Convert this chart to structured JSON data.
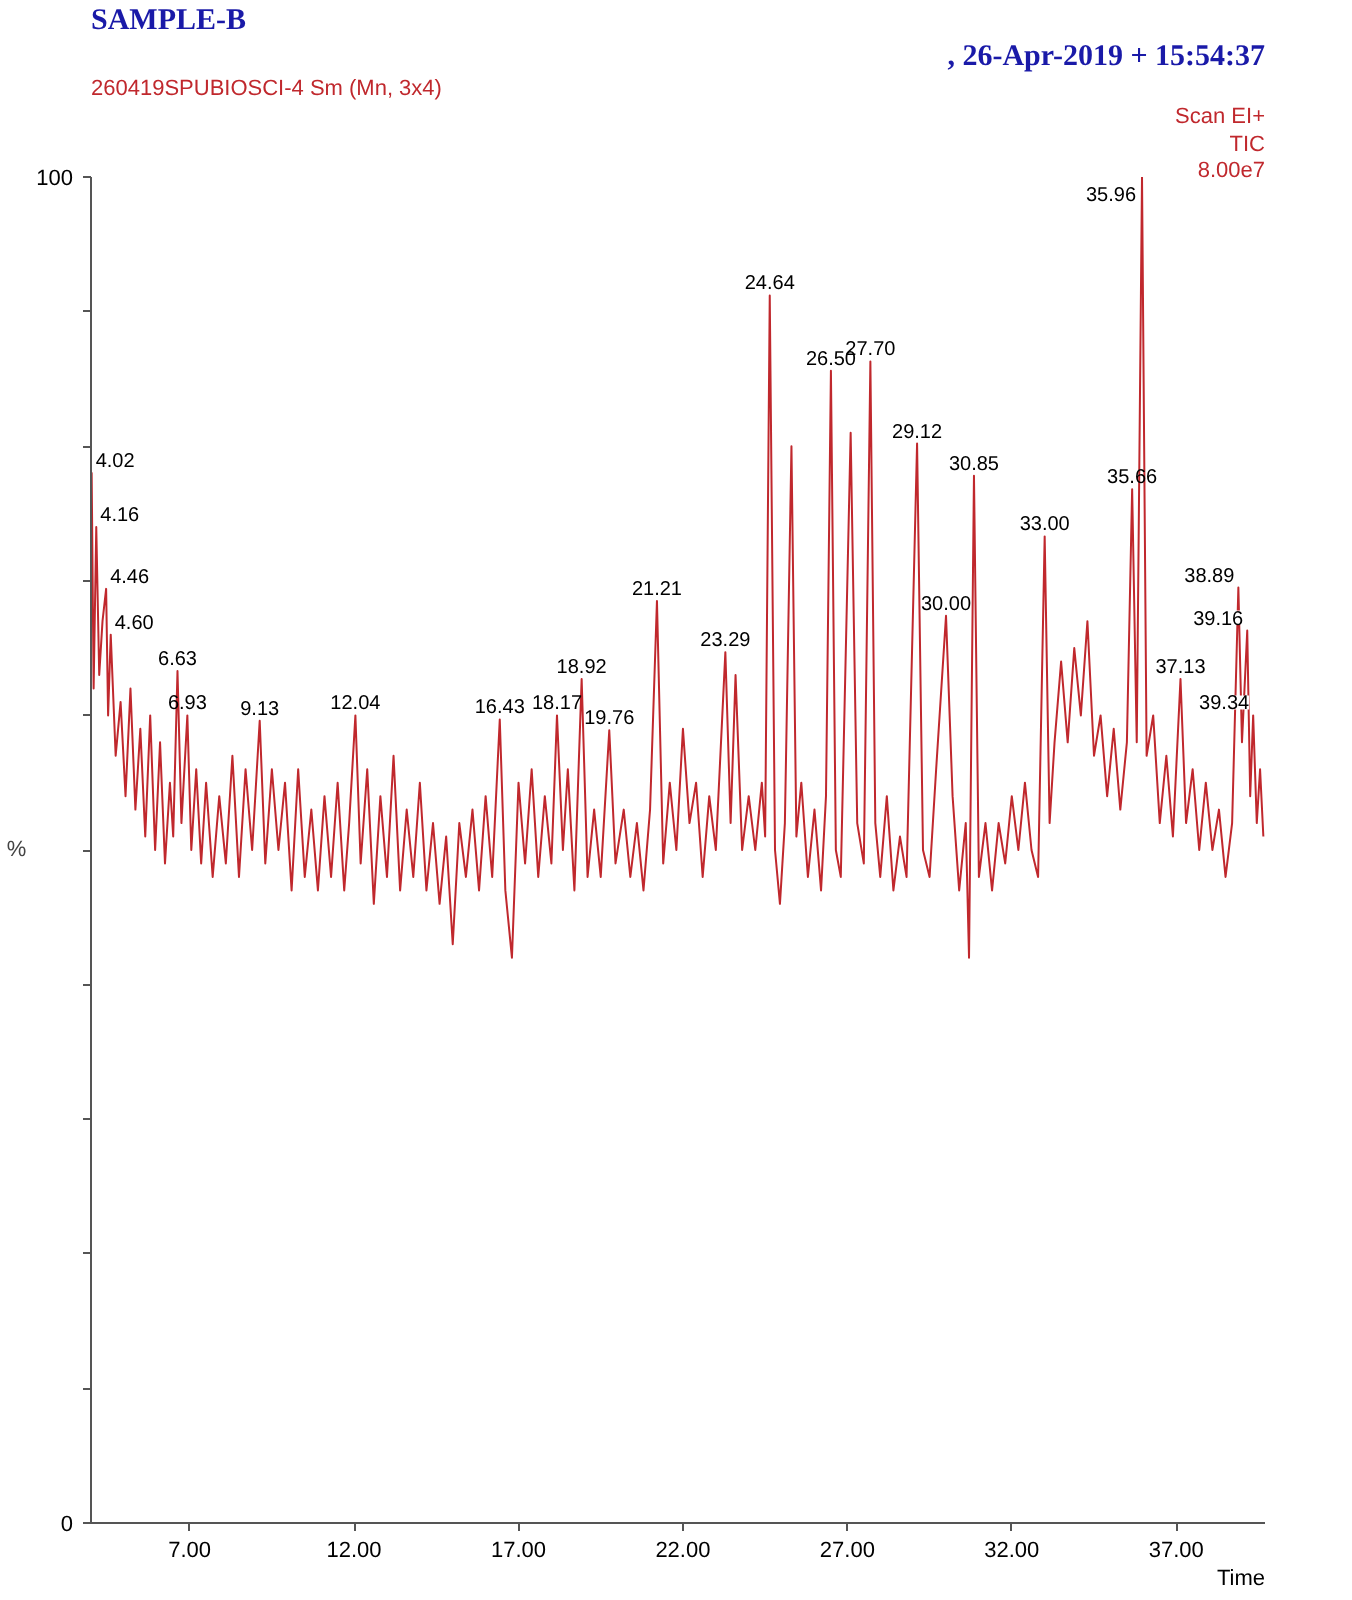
{
  "chart_data": {
    "type": "line",
    "title": "SAMPLE-B",
    "subtitle": "260419SPUBIOSCI-4 Sm (Mn, 3x4)",
    "xlabel": "Time",
    "ylabel": "%",
    "annotations": [
      ", 26-Apr-2019 + 15:54:37",
      "Scan EI+",
      "TIC",
      "8.00e7",
      {
        "text": "4.02",
        "x": 4.02,
        "y": 78
      },
      {
        "text": "4.16",
        "x": 4.16,
        "y": 74
      },
      {
        "text": "4.46",
        "x": 4.46,
        "y": 69.4
      },
      {
        "text": "4.60",
        "x": 4.6,
        "y": 66
      },
      {
        "text": "6.63",
        "x": 6.63,
        "y": 63.3
      },
      {
        "text": "6.93",
        "x": 6.93,
        "y": 60
      },
      {
        "text": "9.13",
        "x": 9.13,
        "y": 59.6
      },
      {
        "text": "12.04",
        "x": 12.04,
        "y": 60
      },
      {
        "text": "16.43",
        "x": 16.43,
        "y": 59.7
      },
      {
        "text": "18.17",
        "x": 18.17,
        "y": 60
      },
      {
        "text": "18.92",
        "x": 18.92,
        "y": 62.7
      },
      {
        "text": "19.76",
        "x": 19.76,
        "y": 58.9
      },
      {
        "text": "21.21",
        "x": 21.21,
        "y": 68.5
      },
      {
        "text": "23.29",
        "x": 23.29,
        "y": 64.7
      },
      {
        "text": "24.64",
        "x": 24.64,
        "y": 91.2
      },
      {
        "text": "26.50",
        "x": 26.5,
        "y": 85.6
      },
      {
        "text": "27.70",
        "x": 27.7,
        "y": 86.3
      },
      {
        "text": "29.12",
        "x": 29.12,
        "y": 80.2
      },
      {
        "text": "30.00",
        "x": 30.0,
        "y": 67.4
      },
      {
        "text": "30.85",
        "x": 30.85,
        "y": 77.8
      },
      {
        "text": "33.00",
        "x": 33.0,
        "y": 73.3
      },
      {
        "text": "35.66",
        "x": 35.66,
        "y": 76.8
      },
      {
        "text": "35.96",
        "x": 35.96,
        "y": 100
      },
      {
        "text": "37.13",
        "x": 37.13,
        "y": 62.7
      },
      {
        "text": "38.89",
        "x": 38.89,
        "y": 69.5
      },
      {
        "text": "39.16",
        "x": 39.16,
        "y": 66.3
      },
      {
        "text": "39.34",
        "x": 39.34,
        "y": 60
      }
    ],
    "xlim": [
      4.0,
      39.7
    ],
    "ylim": [
      0,
      100
    ],
    "xticks": [
      {
        "value": 7,
        "label": "7.00"
      },
      {
        "value": 12,
        "label": "12.00"
      },
      {
        "value": 17,
        "label": "17.00"
      },
      {
        "value": 22,
        "label": "22.00"
      },
      {
        "value": 27,
        "label": "27.00"
      },
      {
        "value": 32,
        "label": "32.00"
      },
      {
        "value": 37,
        "label": "37.00"
      }
    ],
    "yticks": [
      0,
      {
        "value": 10,
        "label": null
      },
      {
        "value": 20,
        "label": null
      },
      {
        "value": 30,
        "label": null
      },
      {
        "value": 40,
        "label": null
      },
      {
        "value": 50,
        "label": null
      },
      {
        "value": 60,
        "label": null
      },
      {
        "value": 70,
        "label": null
      },
      {
        "value": 80,
        "label": null
      },
      {
        "value": 90,
        "label": null
      },
      100
    ],
    "grid": false,
    "series": [
      {
        "color": "#c0282d",
        "x": [
          4.0,
          4.02,
          4.08,
          4.16,
          4.25,
          4.35,
          4.46,
          4.52,
          4.6,
          4.75,
          4.9,
          5.05,
          5.2,
          5.35,
          5.5,
          5.65,
          5.8,
          5.95,
          6.1,
          6.25,
          6.4,
          6.5,
          6.63,
          6.75,
          6.93,
          7.05,
          7.2,
          7.35,
          7.5,
          7.7,
          7.9,
          8.1,
          8.3,
          8.5,
          8.7,
          8.9,
          9.13,
          9.3,
          9.5,
          9.7,
          9.9,
          10.1,
          10.3,
          10.5,
          10.7,
          10.9,
          11.1,
          11.3,
          11.5,
          11.7,
          11.85,
          12.04,
          12.2,
          12.4,
          12.6,
          12.8,
          13.0,
          13.2,
          13.4,
          13.6,
          13.8,
          14.0,
          14.2,
          14.4,
          14.6,
          14.8,
          15.0,
          15.2,
          15.4,
          15.6,
          15.8,
          16.0,
          16.2,
          16.43,
          16.6,
          16.8,
          17.0,
          17.2,
          17.4,
          17.6,
          17.8,
          18.0,
          18.17,
          18.35,
          18.5,
          18.7,
          18.92,
          19.1,
          19.3,
          19.5,
          19.76,
          19.95,
          20.2,
          20.4,
          20.6,
          20.8,
          21.0,
          21.21,
          21.4,
          21.6,
          21.8,
          22.0,
          22.2,
          22.4,
          22.6,
          22.8,
          23.0,
          23.29,
          23.45,
          23.6,
          23.8,
          24.0,
          24.2,
          24.4,
          24.5,
          24.64,
          24.8,
          24.95,
          25.1,
          25.3,
          25.45,
          25.6,
          25.8,
          26.0,
          26.2,
          26.35,
          26.5,
          26.65,
          26.8,
          27.1,
          27.3,
          27.5,
          27.7,
          27.85,
          28.0,
          28.2,
          28.4,
          28.6,
          28.8,
          29.12,
          29.3,
          29.5,
          29.7,
          30.0,
          30.2,
          30.4,
          30.6,
          30.7,
          30.85,
          31.0,
          31.2,
          31.4,
          31.6,
          31.8,
          32.0,
          32.2,
          32.4,
          32.6,
          32.8,
          33.0,
          33.15,
          33.3,
          33.5,
          33.7,
          33.9,
          34.1,
          34.3,
          34.5,
          34.7,
          34.9,
          35.1,
          35.3,
          35.5,
          35.66,
          35.8,
          35.96,
          36.1,
          36.3,
          36.5,
          36.7,
          36.9,
          37.13,
          37.3,
          37.5,
          37.7,
          37.9,
          38.1,
          38.3,
          38.5,
          38.7,
          38.89,
          39.0,
          39.16,
          39.25,
          39.34,
          39.45,
          39.55,
          39.65
        ],
        "values": [
          72,
          78,
          62,
          74,
          63,
          67,
          69.4,
          60,
          66,
          57,
          61,
          54,
          62,
          53,
          59,
          51,
          60,
          50,
          58,
          49,
          55,
          51,
          63.3,
          52,
          60,
          50,
          56,
          49,
          55,
          48,
          54,
          49,
          57,
          48,
          56,
          50,
          59.6,
          49,
          56,
          50,
          55,
          47,
          56,
          48,
          53,
          47,
          54,
          48,
          55,
          47,
          52,
          60,
          49,
          56,
          46,
          54,
          48,
          57,
          47,
          53,
          48,
          55,
          47,
          52,
          46,
          51,
          43,
          52,
          48,
          53,
          47,
          54,
          48,
          59.7,
          47,
          42,
          55,
          49,
          56,
          48,
          54,
          49,
          60,
          50,
          56,
          47,
          62.7,
          48,
          53,
          48,
          58.9,
          49,
          53,
          48,
          52,
          47,
          53,
          68.5,
          49,
          55,
          50,
          59,
          52,
          55,
          48,
          54,
          50,
          64.7,
          52,
          63,
          50,
          54,
          50,
          55,
          51,
          91.2,
          50,
          46,
          52,
          80,
          51,
          55,
          48,
          53,
          47,
          54,
          85.6,
          50,
          48,
          81,
          52,
          49,
          86.3,
          52,
          48,
          54,
          47,
          51,
          48,
          80.2,
          50,
          48,
          56,
          67.4,
          54,
          47,
          52,
          42,
          77.8,
          48,
          52,
          47,
          52,
          49,
          54,
          50,
          55,
          50,
          48,
          73.3,
          52,
          58,
          64,
          58,
          65,
          60,
          67,
          57,
          60,
          54,
          59,
          53,
          58,
          76.8,
          58,
          100,
          57,
          60,
          52,
          57,
          51,
          62.7,
          52,
          56,
          50,
          55,
          50,
          53,
          48,
          52,
          69.5,
          58,
          66.3,
          54,
          60,
          52,
          56,
          51
        ]
      }
    ]
  }
}
